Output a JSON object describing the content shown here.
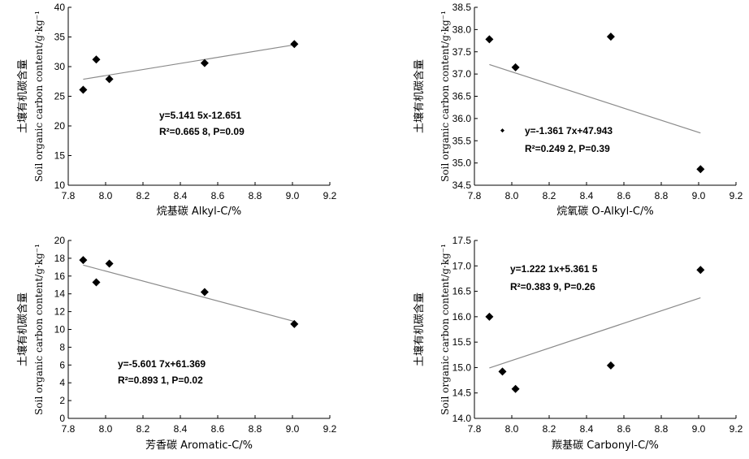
{
  "chart_data": [
    {
      "type": "scatter",
      "xlabel": "烷基碳 Alkyl-C/%",
      "ylabel_cn": "土壤有机碳含量",
      "ylabel_en": "Soil organic carbon content/g·kg⁻¹",
      "xlim": [
        7.8,
        9.2
      ],
      "ylim": [
        10,
        40
      ],
      "xticks": [
        "7.8",
        "8.0",
        "8.2",
        "8.4",
        "8.6",
        "8.8",
        "9.0",
        "9.2"
      ],
      "yticks": [
        "10",
        "15",
        "20",
        "25",
        "30",
        "35",
        "40"
      ],
      "points": [
        {
          "x": 7.88,
          "y": 26.1
        },
        {
          "x": 7.95,
          "y": 31.2
        },
        {
          "x": 8.02,
          "y": 27.9
        },
        {
          "x": 8.53,
          "y": 30.6
        },
        {
          "x": 9.01,
          "y": 33.8
        }
      ],
      "trend": {
        "slope": 5.1415,
        "intercept": -12.651,
        "x_range": [
          7.88,
          9.01
        ]
      },
      "equation": "y=5.141 5x-12.651",
      "r2_label": "R²=0.665 8, P=0.09"
    },
    {
      "type": "scatter",
      "xlabel": "烷氧碳 O-Alkyl-C/%",
      "ylabel_cn": "土壤有机碳含量",
      "ylabel_en": "Soil organic carbon content/g·kg⁻¹",
      "xlim": [
        7.8,
        9.2
      ],
      "ylim": [
        34.5,
        38.5
      ],
      "xticks": [
        "7.8",
        "8.0",
        "8.2",
        "8.4",
        "8.6",
        "8.8",
        "9.0",
        "9.2"
      ],
      "yticks": [
        "34.5",
        "35.0",
        "35.5",
        "36.0",
        "36.5",
        "37.0",
        "37.5",
        "38.0",
        "38.5"
      ],
      "points": [
        {
          "x": 7.88,
          "y": 37.78
        },
        {
          "x": 7.95,
          "y": 35.73
        },
        {
          "x": 8.02,
          "y": 37.15
        },
        {
          "x": 8.53,
          "y": 37.84
        },
        {
          "x": 9.01,
          "y": 34.86
        }
      ],
      "trend": {
        "slope": -1.3617,
        "intercept": 47.943,
        "x_range": [
          7.88,
          9.01
        ]
      },
      "equation": "y=-1.361 7x+47.943",
      "r2_label": "R²=0.249 2, P=0.39"
    },
    {
      "type": "scatter",
      "xlabel": "芳香碳 Aromatic-C/%",
      "ylabel_cn": "土壤有机碳含量",
      "ylabel_en": "Soil organic carbon content/g·kg⁻¹",
      "xlim": [
        7.8,
        9.2
      ],
      "ylim": [
        0,
        20
      ],
      "xticks": [
        "7.8",
        "8.0",
        "8.2",
        "8.4",
        "8.6",
        "8.8",
        "9.0",
        "9.2"
      ],
      "yticks": [
        "0",
        "2",
        "4",
        "6",
        "8",
        "10",
        "12",
        "14",
        "16",
        "18",
        "20"
      ],
      "points": [
        {
          "x": 7.88,
          "y": 17.8
        },
        {
          "x": 7.95,
          "y": 15.3
        },
        {
          "x": 8.02,
          "y": 17.4
        },
        {
          "x": 8.53,
          "y": 14.2
        },
        {
          "x": 9.01,
          "y": 10.6
        }
      ],
      "trend": {
        "slope": -5.6017,
        "intercept": 61.369,
        "x_range": [
          7.88,
          9.01
        ]
      },
      "equation": "y=-5.601 7x+61.369",
      "r2_label": "R²=0.893 1, P=0.02"
    },
    {
      "type": "scatter",
      "xlabel": "羰基碳 Carbonyl-C/%",
      "ylabel_cn": "土壤有机碳含量",
      "ylabel_en": "Soil organic carbon content/g·kg⁻¹",
      "xlim": [
        7.8,
        9.2
      ],
      "ylim": [
        14.0,
        17.5
      ],
      "xticks": [
        "7.8",
        "8.0",
        "8.2",
        "8.4",
        "8.6",
        "8.8",
        "9.0",
        "9.2"
      ],
      "yticks": [
        "14.0",
        "14.5",
        "15.0",
        "15.5",
        "16.0",
        "16.5",
        "17.0",
        "17.5"
      ],
      "points": [
        {
          "x": 7.88,
          "y": 16.0
        },
        {
          "x": 7.95,
          "y": 14.92
        },
        {
          "x": 8.02,
          "y": 14.58
        },
        {
          "x": 8.53,
          "y": 15.04
        },
        {
          "x": 9.01,
          "y": 16.92
        }
      ],
      "trend": {
        "slope": 1.2221,
        "intercept": 5.3615,
        "x_range": [
          7.88,
          9.01
        ]
      },
      "equation": "y=1.222 1x+5.361 5",
      "r2_label": "R²=0.383 9, P=0.26"
    }
  ]
}
